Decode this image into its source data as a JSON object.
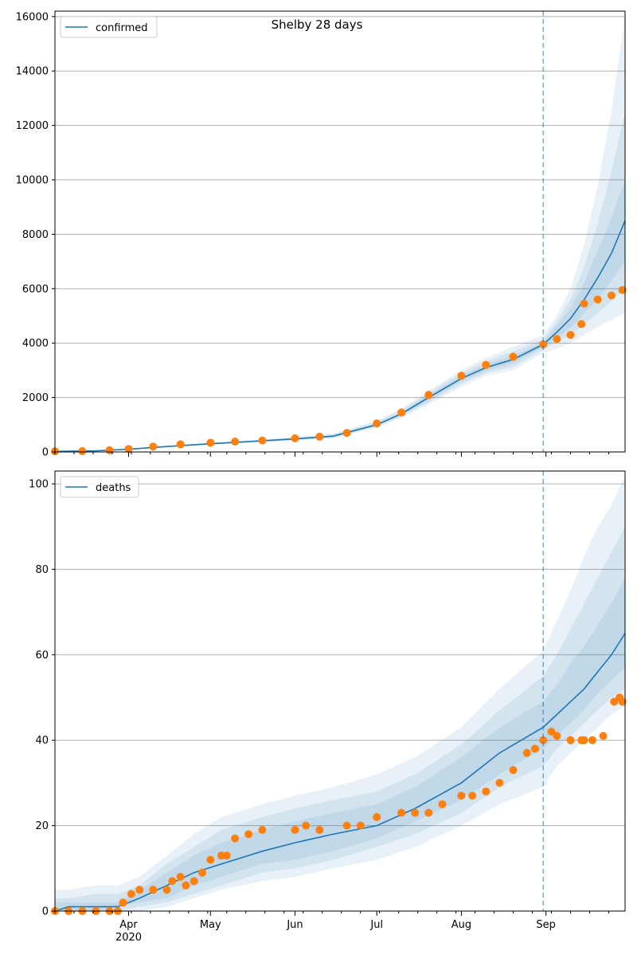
{
  "figure": {
    "title": "Shelby 28 days"
  },
  "chart_data": [
    {
      "type": "line",
      "id": "confirmed",
      "legend": {
        "label": "confirmed",
        "location": "top-left"
      },
      "grid": {
        "y": true,
        "x": false
      },
      "x_range": [
        "2020-03-05",
        "2020-09-30"
      ],
      "ylim": [
        0,
        16200
      ],
      "y_ticks": [
        0,
        2000,
        4000,
        6000,
        8000,
        10000,
        12000,
        14000,
        16000
      ],
      "x_ticks": [
        {
          "date": "2020-04-01",
          "label": "Apr",
          "sublabel": "2020"
        },
        {
          "date": "2020-05-01",
          "label": "May"
        },
        {
          "date": "2020-06-01",
          "label": "Jun"
        },
        {
          "date": "2020-07-01",
          "label": "Jul"
        },
        {
          "date": "2020-08-01",
          "label": "Aug"
        },
        {
          "date": "2020-09-01",
          "label": "Sep"
        }
      ],
      "forecast_start": "2020-08-31",
      "colors": {
        "model": "#1f77b4",
        "observed": "#ff7f0e",
        "band": "#1f77b4"
      },
      "model": {
        "dates": [
          "2020-03-05",
          "2020-03-20",
          "2020-04-01",
          "2020-04-15",
          "2020-05-01",
          "2020-05-15",
          "2020-06-01",
          "2020-06-15",
          "2020-07-01",
          "2020-07-10",
          "2020-07-20",
          "2020-08-01",
          "2020-08-10",
          "2020-08-20",
          "2020-08-31",
          "2020-09-05",
          "2020-09-10",
          "2020-09-15",
          "2020-09-20",
          "2020-09-25",
          "2020-09-30"
        ],
        "median": [
          20,
          40,
          100,
          200,
          300,
          380,
          480,
          580,
          1000,
          1400,
          2000,
          2700,
          3100,
          3400,
          3950,
          4400,
          4900,
          5600,
          6400,
          7300,
          8500
        ],
        "bands": [
          {
            "lower": [
              10,
              30,
              80,
              170,
              260,
              330,
              420,
              510,
              900,
              1250,
              1750,
              2400,
              2800,
              3000,
              3650,
              3800,
              4000,
              4300,
              4600,
              4850,
              5100
            ],
            "upper": [
              30,
              55,
              125,
              230,
              340,
              430,
              550,
              680,
              1150,
              1600,
              2250,
              3000,
              3450,
              3850,
              4300,
              5000,
              6000,
              7600,
              9800,
              12500,
              16000
            ]
          },
          {
            "lower": [
              12,
              33,
              88,
              180,
              272,
              345,
              440,
              530,
              930,
              1300,
              1830,
              2500,
              2900,
              3140,
              3770,
              4050,
              4300,
              4700,
              5100,
              5550,
              6000
            ],
            "upper": [
              27,
              50,
              115,
              220,
              328,
              415,
              525,
              650,
              1100,
              1530,
              2170,
              2900,
              3330,
              3690,
              4150,
              4800,
              5600,
              6800,
              8400,
              10300,
              12500
            ]
          },
          {
            "lower": [
              15,
              36,
              93,
              188,
              285,
              360,
              455,
              550,
              960,
              1350,
              1900,
              2600,
              2990,
              3270,
              3860,
              4200,
              4550,
              5100,
              5600,
              6300,
              7000
            ],
            "upper": [
              25,
              45,
              108,
              212,
              315,
              400,
              505,
              615,
              1050,
              1460,
              2100,
              2800,
              3210,
              3530,
              4040,
              4650,
              5300,
              6200,
              7400,
              8600,
              10000
            ]
          }
        ]
      },
      "observed": {
        "dates": [
          "2020-03-05",
          "2020-03-15",
          "2020-03-25",
          "2020-04-01",
          "2020-04-10",
          "2020-04-20",
          "2020-05-01",
          "2020-05-10",
          "2020-05-20",
          "2020-06-01",
          "2020-06-10",
          "2020-06-20",
          "2020-07-01",
          "2020-07-10",
          "2020-07-20",
          "2020-08-01",
          "2020-08-10",
          "2020-08-20",
          "2020-08-31",
          "2020-09-05",
          "2020-09-10",
          "2020-09-14",
          "2020-09-15",
          "2020-09-20",
          "2020-09-25",
          "2020-09-29"
        ],
        "values": [
          20,
          30,
          60,
          110,
          200,
          280,
          340,
          380,
          420,
          500,
          560,
          700,
          1050,
          1450,
          2100,
          2800,
          3200,
          3500,
          3950,
          4150,
          4300,
          4700,
          5450,
          5600,
          5750,
          5950
        ]
      }
    },
    {
      "type": "line",
      "id": "deaths",
      "legend": {
        "label": "deaths",
        "location": "top-left"
      },
      "grid": {
        "y": true,
        "x": false
      },
      "x_range": [
        "2020-03-05",
        "2020-09-30"
      ],
      "ylim": [
        0,
        103
      ],
      "y_ticks": [
        0,
        20,
        40,
        60,
        80,
        100
      ],
      "x_ticks": [
        {
          "date": "2020-04-01",
          "label": "Apr",
          "sublabel": "2020"
        },
        {
          "date": "2020-05-01",
          "label": "May"
        },
        {
          "date": "2020-06-01",
          "label": "Jun"
        },
        {
          "date": "2020-07-01",
          "label": "Jul"
        },
        {
          "date": "2020-08-01",
          "label": "Aug"
        },
        {
          "date": "2020-09-01",
          "label": "Sep"
        }
      ],
      "forecast_start": "2020-08-31",
      "colors": {
        "model": "#1f77b4",
        "observed": "#ff7f0e",
        "band": "#1f77b4"
      },
      "model": {
        "dates": [
          "2020-03-05",
          "2020-03-10",
          "2020-03-20",
          "2020-03-28",
          "2020-04-05",
          "2020-04-15",
          "2020-04-25",
          "2020-05-05",
          "2020-05-20",
          "2020-06-01",
          "2020-06-15",
          "2020-07-01",
          "2020-07-15",
          "2020-08-01",
          "2020-08-15",
          "2020-08-31",
          "2020-09-05",
          "2020-09-10",
          "2020-09-15",
          "2020-09-20",
          "2020-09-25",
          "2020-09-30"
        ],
        "median": [
          0,
          1,
          1,
          1,
          3,
          6,
          9,
          11,
          14,
          16,
          18,
          20,
          24,
          30,
          37,
          43,
          46,
          49,
          52,
          56,
          60,
          65
        ],
        "bands": [
          {
            "lower": [
              0,
              0,
              0,
              0,
              0,
              1,
              3,
              5,
              7,
              8,
              10,
              12,
              15,
              20,
              25,
              29,
              34,
              37,
              40,
              43,
              46,
              48
            ],
            "upper": [
              5,
              5,
              6,
              6,
              8,
              13,
              18,
              22,
              25,
              27,
              29,
              32,
              36,
              43,
              52,
              61,
              68,
              75,
              83,
              90,
              95,
              102
            ]
          },
          {
            "lower": [
              0,
              0,
              0,
              0,
              1,
              2,
              4,
              6,
              9,
              10,
              12,
              15,
              18,
              23,
              29,
              34,
              38,
              41,
              44,
              47,
              50,
              52
            ],
            "upper": [
              3,
              3,
              4,
              4,
              6,
              11,
              15,
              19,
              22,
              24,
              26,
              28,
              32,
              39,
              47,
              55,
              60,
              66,
              72,
              78,
              84,
              90
            ]
          },
          {
            "lower": [
              0,
              0,
              0,
              1,
              2,
              3,
              6,
              8,
              11,
              12,
              14,
              17,
              21,
              26,
              32,
              38,
              41,
              44,
              47,
              51,
              54,
              57
            ],
            "upper": [
              2,
              2,
              2,
              2,
              5,
              9,
              13,
              16,
              19,
              21,
              23,
              25,
              29,
              36,
              43,
              49,
              53,
              58,
              62,
              67,
              72,
              78
            ]
          }
        ]
      },
      "observed": {
        "dates": [
          "2020-03-05",
          "2020-03-10",
          "2020-03-15",
          "2020-03-20",
          "2020-03-25",
          "2020-03-28",
          "2020-03-30",
          "2020-04-02",
          "2020-04-05",
          "2020-04-10",
          "2020-04-15",
          "2020-04-17",
          "2020-04-20",
          "2020-04-22",
          "2020-04-25",
          "2020-04-28",
          "2020-05-01",
          "2020-05-05",
          "2020-05-07",
          "2020-05-10",
          "2020-05-15",
          "2020-05-20",
          "2020-06-01",
          "2020-06-05",
          "2020-06-10",
          "2020-06-20",
          "2020-06-25",
          "2020-07-01",
          "2020-07-10",
          "2020-07-15",
          "2020-07-20",
          "2020-07-25",
          "2020-08-01",
          "2020-08-05",
          "2020-08-10",
          "2020-08-15",
          "2020-08-20",
          "2020-08-25",
          "2020-08-28",
          "2020-08-31",
          "2020-09-03",
          "2020-09-05",
          "2020-09-10",
          "2020-09-14",
          "2020-09-15",
          "2020-09-18",
          "2020-09-22",
          "2020-09-26",
          "2020-09-28",
          "2020-09-29"
        ],
        "values": [
          0,
          0,
          0,
          0,
          0,
          0,
          2,
          4,
          5,
          5,
          5,
          7,
          8,
          6,
          7,
          9,
          12,
          13,
          13,
          17,
          18,
          19,
          19,
          20,
          19,
          20,
          20,
          22,
          23,
          23,
          23,
          25,
          27,
          27,
          28,
          30,
          33,
          37,
          38,
          40,
          42,
          41,
          40,
          40,
          40,
          40,
          41,
          49,
          50,
          49
        ]
      }
    }
  ]
}
